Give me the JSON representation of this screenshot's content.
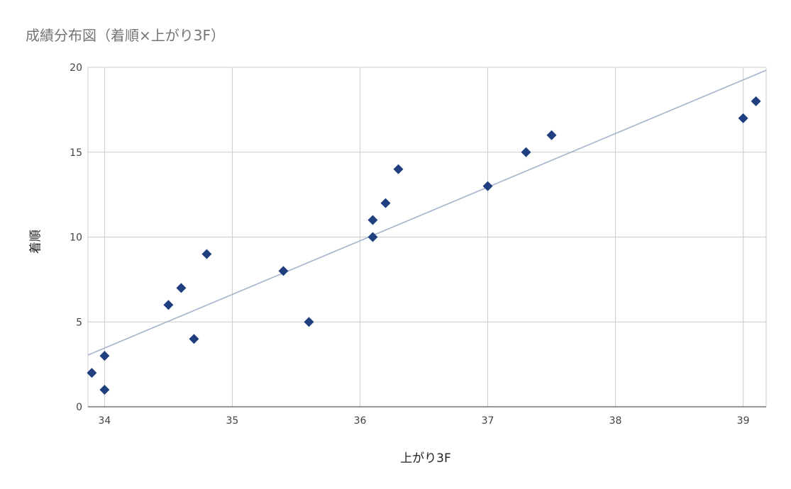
{
  "chart_data": {
    "type": "scatter",
    "title": "成績分布図（着順×上がり3F）",
    "xlabel": "上がり3F",
    "ylabel": "着順",
    "xlim": [
      33.87,
      39.18
    ],
    "ylim": [
      0,
      20
    ],
    "xticks": [
      34,
      35,
      36,
      37,
      38,
      39
    ],
    "yticks": [
      0,
      5,
      10,
      15,
      20
    ],
    "grid": true,
    "legend": "none",
    "marker": "diamond",
    "series": [
      {
        "color": "#1f3f7f",
        "points": [
          {
            "x": 33.9,
            "y": 2
          },
          {
            "x": 34.0,
            "y": 3
          },
          {
            "x": 34.0,
            "y": 1
          },
          {
            "x": 34.5,
            "y": 6
          },
          {
            "x": 34.6,
            "y": 7
          },
          {
            "x": 34.7,
            "y": 4
          },
          {
            "x": 34.8,
            "y": 9
          },
          {
            "x": 35.4,
            "y": 8
          },
          {
            "x": 35.6,
            "y": 5
          },
          {
            "x": 36.1,
            "y": 11
          },
          {
            "x": 36.1,
            "y": 10
          },
          {
            "x": 36.2,
            "y": 12
          },
          {
            "x": 36.3,
            "y": 14
          },
          {
            "x": 37.0,
            "y": 13
          },
          {
            "x": 37.3,
            "y": 15
          },
          {
            "x": 37.5,
            "y": 16
          },
          {
            "x": 39.0,
            "y": 17
          },
          {
            "x": 39.1,
            "y": 18
          }
        ]
      }
    ],
    "trendline": {
      "type": "linear",
      "color": "#a3b4cc",
      "slope": 3.16,
      "intercept": -103.98
    }
  }
}
